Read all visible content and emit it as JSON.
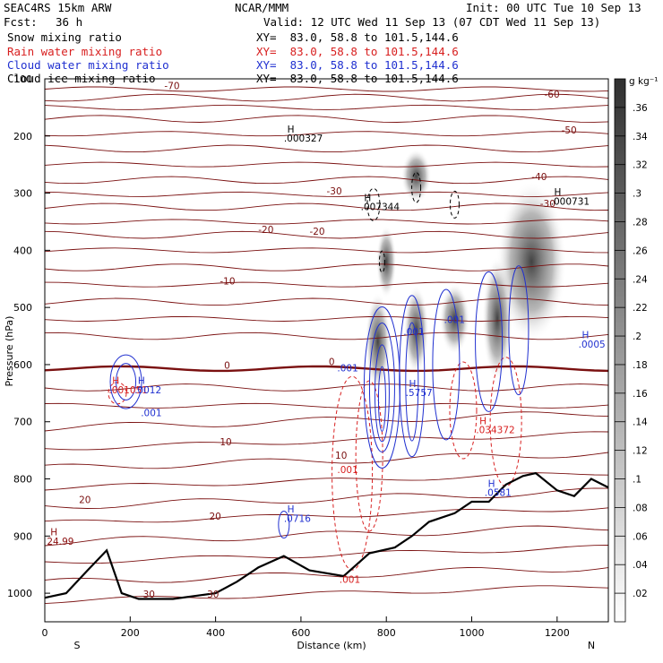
{
  "header": {
    "model": "SEAC4RS 15km ARW",
    "org": "NCAR/MMM",
    "init": "Init: 00 UTC Tue 10 Sep 13",
    "fcst_label": "Fcst:",
    "fcst_value": "36 h",
    "valid": "Valid: 12 UTC Wed 11 Sep 13 (07 CDT Wed 11 Sep 13)"
  },
  "fields": [
    {
      "name": "Snow mixing ratio",
      "xy": "XY=  83.0, 58.8 to 101.5,144.6",
      "color": "#000000"
    },
    {
      "name": "Rain water mixing ratio",
      "xy": "XY=  83.0, 58.8 to 101.5,144.6",
      "color": "#d82020"
    },
    {
      "name": "Cloud water mixing ratio",
      "xy": "XY=  83.0, 58.8 to 101.5,144.6",
      "color": "#2030d0"
    },
    {
      "name": "Cloud ice mixing ratio",
      "xy": "XY=  83.0, 58.8 to 101.5,144.6",
      "color": "#000000"
    }
  ],
  "chart_data": {
    "type": "cross-section contour",
    "xlabel": "Distance (km)",
    "ylabel": "Pressure (hPa)",
    "x_ticks": [
      0,
      200,
      400,
      600,
      800,
      1000,
      1200
    ],
    "x_range": [
      0,
      1320
    ],
    "y_ticks": [
      100,
      200,
      300,
      400,
      500,
      600,
      700,
      800,
      900,
      1000
    ],
    "y_range": [
      100,
      1050
    ],
    "end_labels": {
      "left": "S",
      "right": "N"
    },
    "colorbar": {
      "unit": "g kg⁻¹",
      "ticks": [
        ".36",
        ".34",
        ".32",
        ".3",
        ".28",
        ".26",
        ".24",
        ".22",
        ".2",
        ".18",
        ".16",
        ".14",
        ".12",
        ".1",
        ".08",
        ".06",
        ".04",
        ".02"
      ],
      "range": [
        0,
        0.38
      ]
    },
    "temperature_labels": [
      {
        "text": "-70",
        "x": 280,
        "p": 118
      },
      {
        "text": "-60",
        "x": 1170,
        "p": 133
      },
      {
        "text": "-50",
        "x": 1210,
        "p": 196
      },
      {
        "text": "-40",
        "x": 1140,
        "p": 277
      },
      {
        "text": "-30",
        "x": 660,
        "p": 302
      },
      {
        "text": "-30",
        "x": 1160,
        "p": 324
      },
      {
        "text": "-20",
        "x": 500,
        "p": 370
      },
      {
        "text": "-20",
        "x": 620,
        "p": 373
      },
      {
        "text": "-10",
        "x": 410,
        "p": 460
      },
      {
        "text": "0",
        "x": 420,
        "p": 607
      },
      {
        "text": "0",
        "x": 665,
        "p": 601
      },
      {
        "text": "10",
        "x": 410,
        "p": 741
      },
      {
        "text": "10",
        "x": 680,
        "p": 765
      },
      {
        "text": "20",
        "x": 80,
        "p": 842
      },
      {
        "text": "20",
        "x": 385,
        "p": 871
      },
      {
        "text": "30",
        "x": 230,
        "p": 1008
      },
      {
        "text": "30",
        "x": 380,
        "p": 1008
      }
    ],
    "extrema_labels": [
      {
        "h": "H",
        "v": ".000327",
        "x": 560,
        "p": 210,
        "color": "#000000"
      },
      {
        "h": "H",
        "v": ".007344",
        "x": 740,
        "p": 330,
        "color": "#000000"
      },
      {
        "h": "H",
        "v": ".000731",
        "x": 1185,
        "p": 320,
        "color": "#000000"
      },
      {
        "h": "H",
        "v": "24.99",
        "x": 5,
        "p": 915,
        "color": "#8c1010"
      },
      {
        "h": "H",
        "v": ".001051",
        "x": 150,
        "p": 650,
        "color": "#d82020"
      },
      {
        "h": "H",
        "v": ".0012",
        "x": 210,
        "p": 650,
        "color": "#2030d0"
      },
      {
        "h": "H",
        "v": ".5757",
        "x": 845,
        "p": 655,
        "color": "#2030d0"
      },
      {
        "h": "H",
        "v": ".034372",
        "x": 1010,
        "p": 720,
        "color": "#d82020"
      },
      {
        "h": "H",
        "v": ".0581",
        "x": 1030,
        "p": 830,
        "color": "#2030d0"
      },
      {
        "h": "H",
        "v": ".0716",
        "x": 560,
        "p": 875,
        "color": "#2030d0"
      },
      {
        "h": "H",
        "v": ".0005",
        "x": 1250,
        "p": 570,
        "color": "#2030d0"
      }
    ],
    "contour_value_labels": [
      {
        "text": ".001",
        "x": 225,
        "p": 690,
        "color": "#2030d0"
      },
      {
        "text": ".001",
        "x": 840,
        "p": 548,
        "color": "#2030d0"
      },
      {
        "text": ".001",
        "x": 935,
        "p": 527,
        "color": "#2030d0"
      },
      {
        "text": ".001",
        "x": 685,
        "p": 612,
        "color": "#2030d0"
      },
      {
        "text": ".001",
        "x": 685,
        "p": 790,
        "color": "#d82020"
      },
      {
        "text": ".001",
        "x": 690,
        "p": 982,
        "color": "#d82020"
      }
    ]
  }
}
